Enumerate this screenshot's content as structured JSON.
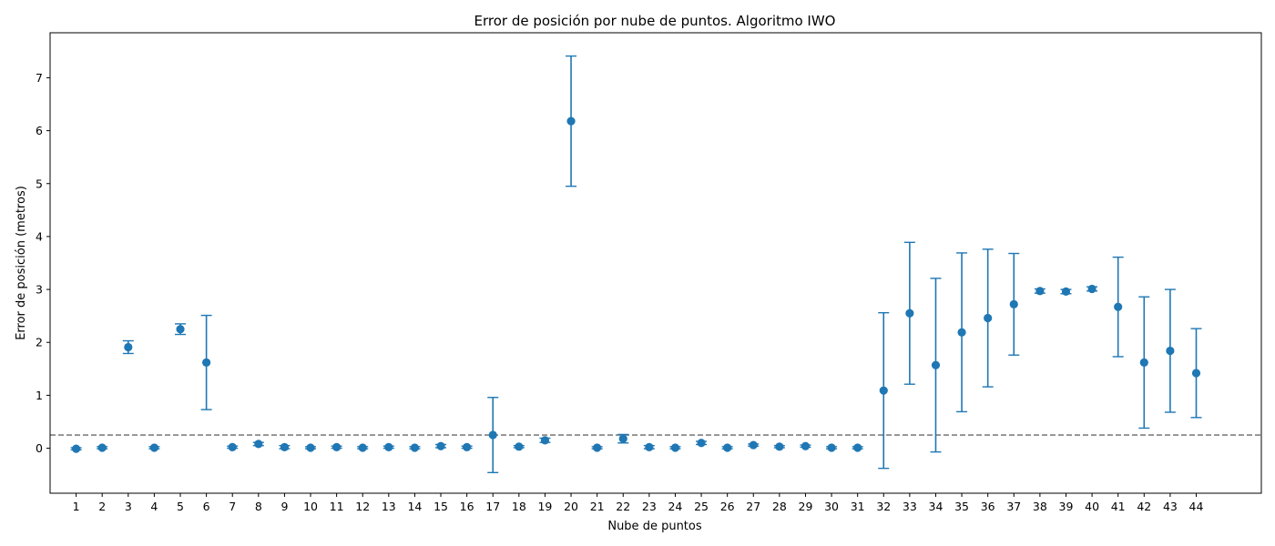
{
  "chart_data": {
    "type": "scatter",
    "title": "Error de posición por nube de puntos. Algoritmo IWO",
    "xlabel": "Nube de puntos",
    "ylabel": "Error de posición (metros)",
    "grid": false,
    "xlim": [
      -1.0,
      45.5
    ],
    "ylim": [
      -0.85,
      7.85
    ],
    "yticks": [
      0,
      1,
      2,
      3,
      4,
      5,
      6,
      7
    ],
    "categories": [
      "1",
      "2",
      "3",
      "4",
      "5",
      "6",
      "7",
      "8",
      "9",
      "10",
      "11",
      "12",
      "13",
      "14",
      "15",
      "16",
      "17",
      "18",
      "19",
      "20",
      "21",
      "22",
      "23",
      "24",
      "25",
      "26",
      "27",
      "28",
      "29",
      "30",
      "31",
      "32",
      "33",
      "34",
      "35",
      "36",
      "37",
      "38",
      "39",
      "40",
      "41",
      "42",
      "43",
      "44"
    ],
    "series": [
      {
        "values": [
          -0.01,
          0.01,
          1.91,
          0.01,
          2.25,
          1.62,
          0.02,
          0.08,
          0.02,
          0.01,
          0.02,
          0.01,
          0.02,
          0.01,
          0.04,
          0.02,
          0.25,
          0.03,
          0.15,
          6.18,
          0.01,
          0.18,
          0.02,
          0.01,
          0.1,
          0.01,
          0.06,
          0.03,
          0.04,
          0.01,
          0.01,
          1.09,
          2.55,
          1.57,
          2.19,
          2.46,
          2.72,
          2.97,
          2.96,
          3.01,
          2.67,
          1.62,
          1.84,
          1.42
        ],
        "errors": [
          0.02,
          0.02,
          0.12,
          0.02,
          0.1,
          0.89,
          0.02,
          0.03,
          0.03,
          0.02,
          0.02,
          0.02,
          0.02,
          0.02,
          0.03,
          0.02,
          0.71,
          0.02,
          0.04,
          1.23,
          0.02,
          0.08,
          0.03,
          0.02,
          0.03,
          0.02,
          0.02,
          0.02,
          0.02,
          0.02,
          0.02,
          1.47,
          1.34,
          1.64,
          1.5,
          1.3,
          0.96,
          0.04,
          0.04,
          0.04,
          0.94,
          1.24,
          1.16,
          0.84
        ],
        "color": "#1f77b4"
      }
    ],
    "reference_line": {
      "y": 0.25,
      "style": "dashed",
      "color": "#808080"
    }
  }
}
